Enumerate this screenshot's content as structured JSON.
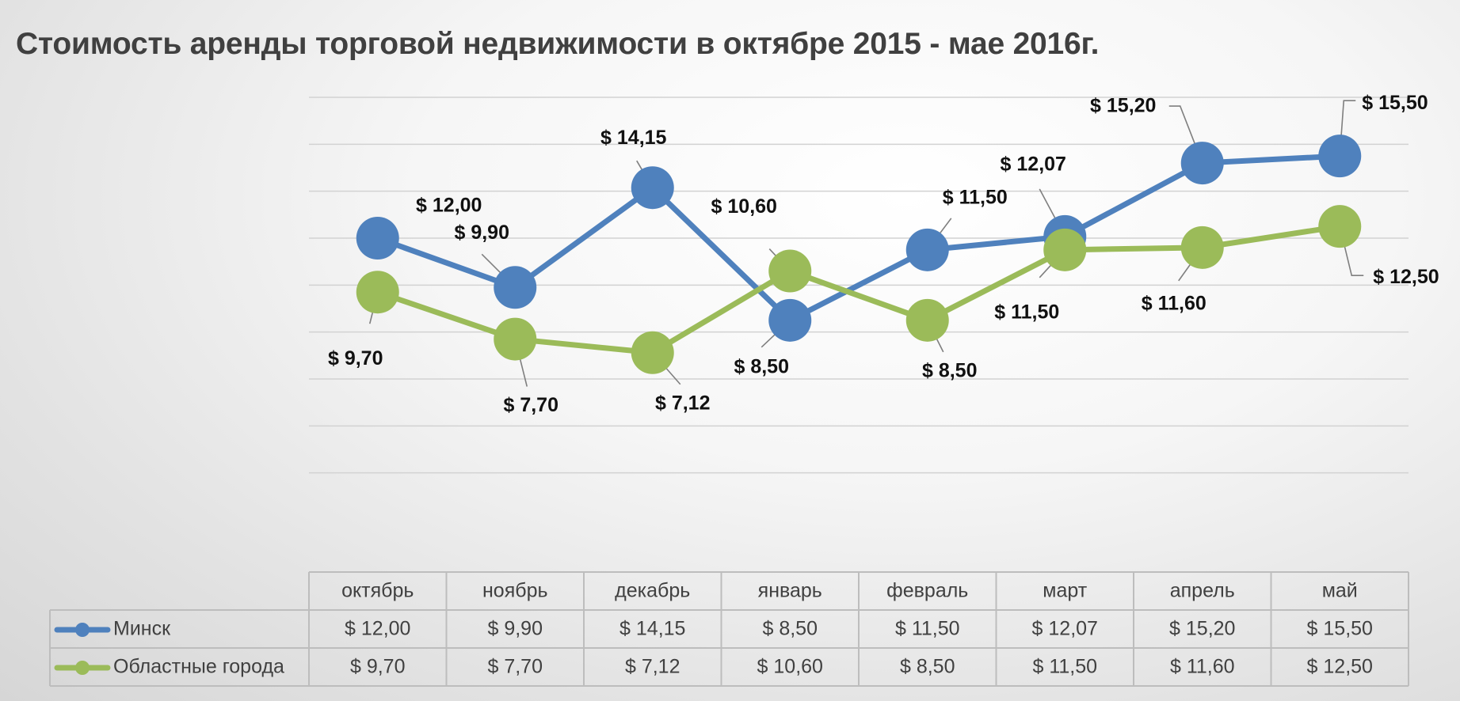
{
  "chart_data": {
    "type": "line",
    "title": "Стоимость аренды торговой недвижимости в октябре 2015 - мае 2016г.",
    "categories": [
      "октябрь",
      "ноябрь",
      "декабрь",
      "январь",
      "февраль",
      "март",
      "апрель",
      "май"
    ],
    "series": [
      {
        "name": "Минск",
        "color": "#4f81bd",
        "values": [
          12.0,
          9.9,
          14.15,
          8.5,
          11.5,
          12.07,
          15.2,
          15.5
        ],
        "labels": [
          "$ 12,00",
          "$ 9,90",
          "$ 14,15",
          "$ 8,50",
          "$ 11,50",
          "$ 12,07",
          "$ 15,20",
          "$ 15,50"
        ]
      },
      {
        "name": "Областные города",
        "color": "#9bbb59",
        "values": [
          9.7,
          7.7,
          7.12,
          10.6,
          8.5,
          11.5,
          11.6,
          12.5
        ],
        "labels": [
          "$ 9,70",
          "$ 7,70",
          "$ 7,12",
          "$ 10,60",
          "$ 8,50",
          "$ 11,50",
          "$ 11,60",
          "$ 12,50"
        ]
      }
    ],
    "ylim": [
      0,
      18
    ],
    "grid": true,
    "data_table": true
  }
}
